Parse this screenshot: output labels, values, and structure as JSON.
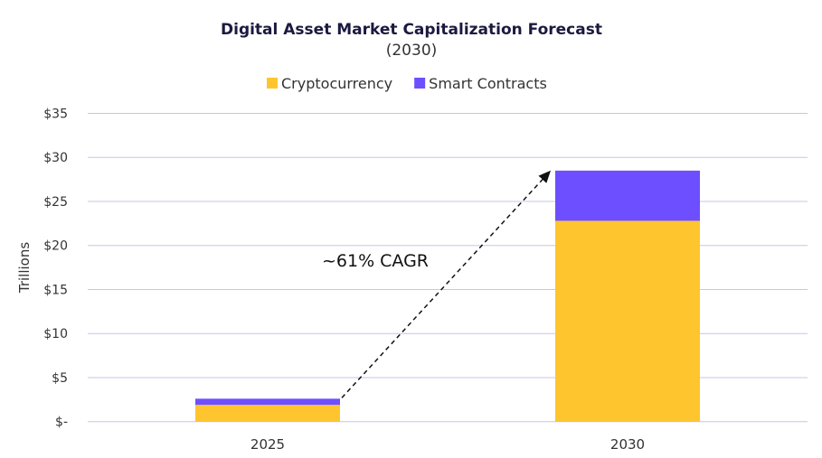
{
  "chart_data": {
    "type": "bar",
    "stacked": true,
    "title": "Digital Asset Market Capitalization Forecast",
    "subtitle": "(2030)",
    "ylabel": "Trillions",
    "xlabel": "",
    "categories": [
      "2025",
      "2030"
    ],
    "series": [
      {
        "name": "Cryptocurrency",
        "values": [
          1.9,
          22.8
        ],
        "color": "#FFC52E"
      },
      {
        "name": "Smart Contracts",
        "values": [
          0.7,
          5.7
        ],
        "color": "#6E4FFF"
      }
    ],
    "ylim": [
      0,
      35
    ],
    "yticks": [
      0,
      5,
      10,
      15,
      20,
      25,
      30,
      35
    ],
    "ytick_labels": [
      "$-",
      "$5",
      "$10",
      "$15",
      "$20",
      "$25",
      "$30",
      "$35"
    ],
    "grid": true,
    "gridline_color": "#C9C4E8",
    "legend_position": "top-center",
    "annotation": {
      "text": "~61% CAGR",
      "arrow": "dashed, from 2025 bar top to 2030 bar top"
    }
  }
}
